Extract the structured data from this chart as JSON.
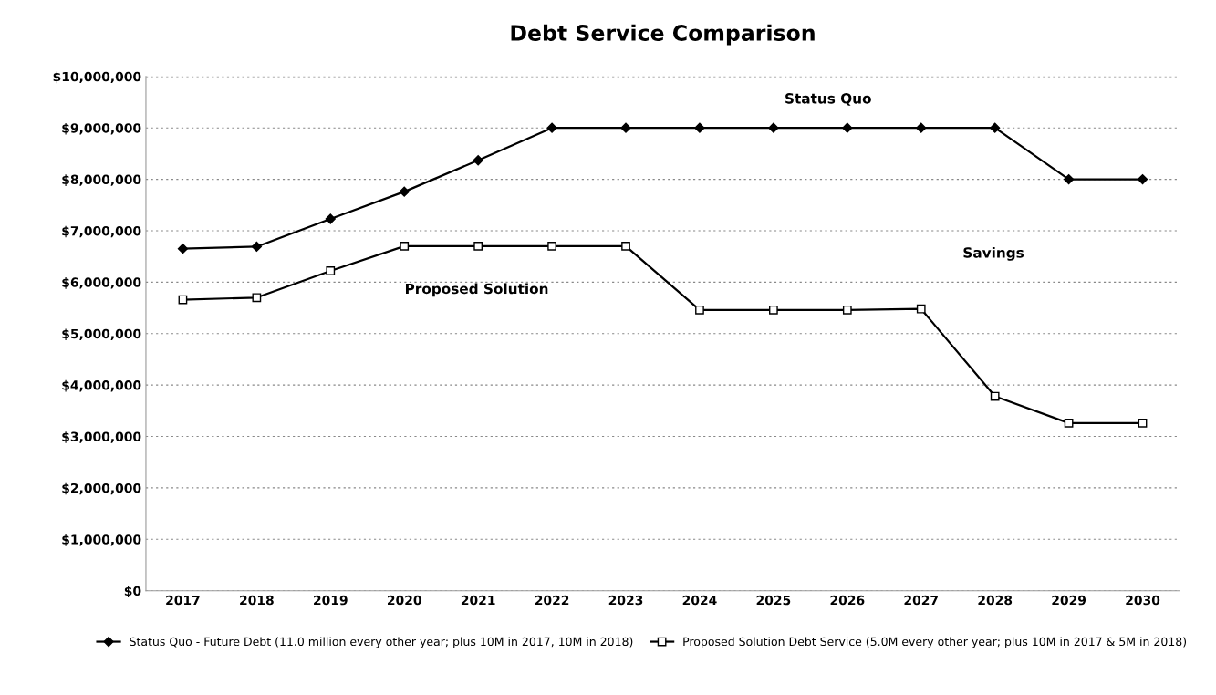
{
  "chart_data": {
    "type": "line",
    "title": "Debt Service Comparison",
    "categories": [
      "2017",
      "2018",
      "2019",
      "2020",
      "2021",
      "2022",
      "2023",
      "2024",
      "2025",
      "2026",
      "2027",
      "2028",
      "2029",
      "2030"
    ],
    "series": [
      {
        "name": "Status Quo - Future Debt (11.0 million every other year; plus 10M in 2017, 10M in 2018)",
        "color": "#000000",
        "marker": "diamond",
        "values": [
          6650000,
          6690000,
          7230000,
          7760000,
          8370000,
          9000000,
          9000000,
          9000000,
          9000000,
          9000000,
          9000000,
          9000000,
          8000000,
          8000000
        ]
      },
      {
        "name": "Proposed Solution Debt Service (5.0M every other year; plus 10M in 2017 & 5M in 2018)",
        "color": "#000000",
        "marker": "square",
        "values": [
          5660000,
          5700000,
          6220000,
          6700000,
          6700000,
          6700000,
          6700000,
          5460000,
          5460000,
          5460000,
          5480000,
          3780000,
          3260000,
          3260000
        ]
      }
    ],
    "ylim": [
      0,
      10000000
    ],
    "yticks": [
      {
        "value": 0,
        "label": "$0"
      },
      {
        "value": 1000000,
        "label": "$1,000,000"
      },
      {
        "value": 2000000,
        "label": "$2,000,000"
      },
      {
        "value": 3000000,
        "label": "$3,000,000"
      },
      {
        "value": 4000000,
        "label": "$4,000,000"
      },
      {
        "value": 5000000,
        "label": "$5,000,000"
      },
      {
        "value": 6000000,
        "label": "$6,000,000"
      },
      {
        "value": 7000000,
        "label": "$7,000,000"
      },
      {
        "value": 8000000,
        "label": "$8,000,000"
      },
      {
        "value": 9000000,
        "label": "$9,000,000"
      },
      {
        "value": 10000000,
        "label": "$10,000,000"
      }
    ],
    "grid": "y",
    "legend": "bottom",
    "annotations": [
      "Status Quo",
      "Savings",
      "Proposed Solution"
    ]
  }
}
